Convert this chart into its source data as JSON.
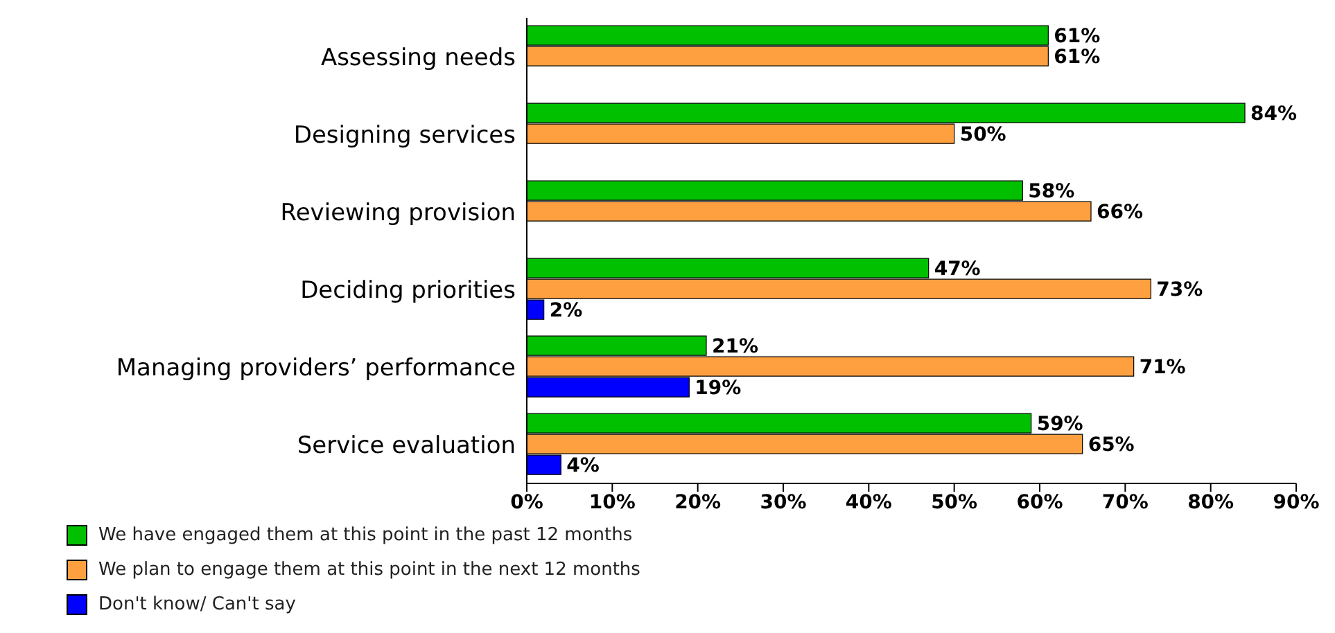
{
  "chart_data": {
    "type": "bar",
    "orientation": "horizontal",
    "categories": [
      "Assessing needs",
      "Designing services",
      "Reviewing provision",
      "Deciding priorities",
      "Managing providers’ performance",
      "Service evaluation"
    ],
    "series": [
      {
        "name": "We have engaged them at this point in the past 12 months",
        "color": "#00c000",
        "values": [
          61,
          84,
          58,
          47,
          21,
          59
        ],
        "value_labels": [
          "61%",
          "84%",
          "58%",
          "47%",
          "21%",
          "59%"
        ]
      },
      {
        "name": "We plan to engage them at this point in the next 12 months",
        "color": "#ffa040",
        "values": [
          61,
          50,
          66,
          73,
          71,
          65
        ],
        "value_labels": [
          "61%",
          "50%",
          "66%",
          "73%",
          "71%",
          "65%"
        ]
      },
      {
        "name": "Don't know/ Can't say",
        "color": "#0000ff",
        "values": [
          null,
          null,
          null,
          2,
          19,
          4
        ],
        "value_labels": [
          null,
          null,
          null,
          "2%",
          "19%",
          "4%"
        ]
      }
    ],
    "xlim": [
      0,
      90
    ],
    "xticks": [
      {
        "value": 0,
        "label": "0%"
      },
      {
        "value": 10,
        "label": "10%"
      },
      {
        "value": 20,
        "label": "20%"
      },
      {
        "value": 30,
        "label": "30%"
      },
      {
        "value": 40,
        "label": "40%"
      },
      {
        "value": 50,
        "label": "50%"
      },
      {
        "value": 60,
        "label": "60%"
      },
      {
        "value": 70,
        "label": "70%"
      },
      {
        "value": 80,
        "label": "80%"
      },
      {
        "value": 90,
        "label": "90%"
      }
    ],
    "grid": false,
    "legend": "bottom"
  }
}
